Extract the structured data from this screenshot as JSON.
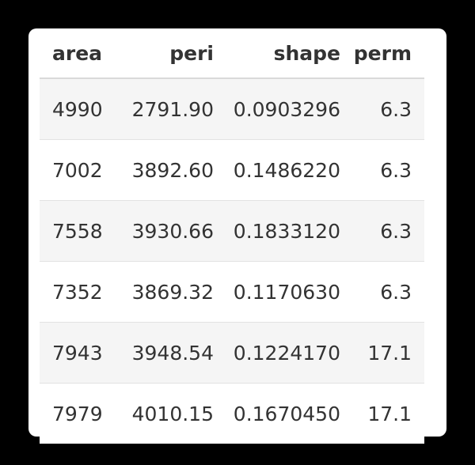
{
  "table": {
    "columns": [
      "area",
      "peri",
      "shape",
      "perm"
    ],
    "rows": [
      [
        "4990",
        "2791.90",
        "0.0903296",
        "6.3"
      ],
      [
        "7002",
        "3892.60",
        "0.1486220",
        "6.3"
      ],
      [
        "7558",
        "3930.66",
        "0.1833120",
        "6.3"
      ],
      [
        "7352",
        "3869.32",
        "0.1170630",
        "6.3"
      ],
      [
        "7943",
        "3948.54",
        "0.1224170",
        "17.1"
      ],
      [
        "7979",
        "4010.15",
        "0.1670450",
        "17.1"
      ]
    ]
  },
  "colors": {
    "background": "#000000",
    "card": "#ffffff",
    "stripe": "#f5f5f5",
    "text": "#333333"
  }
}
